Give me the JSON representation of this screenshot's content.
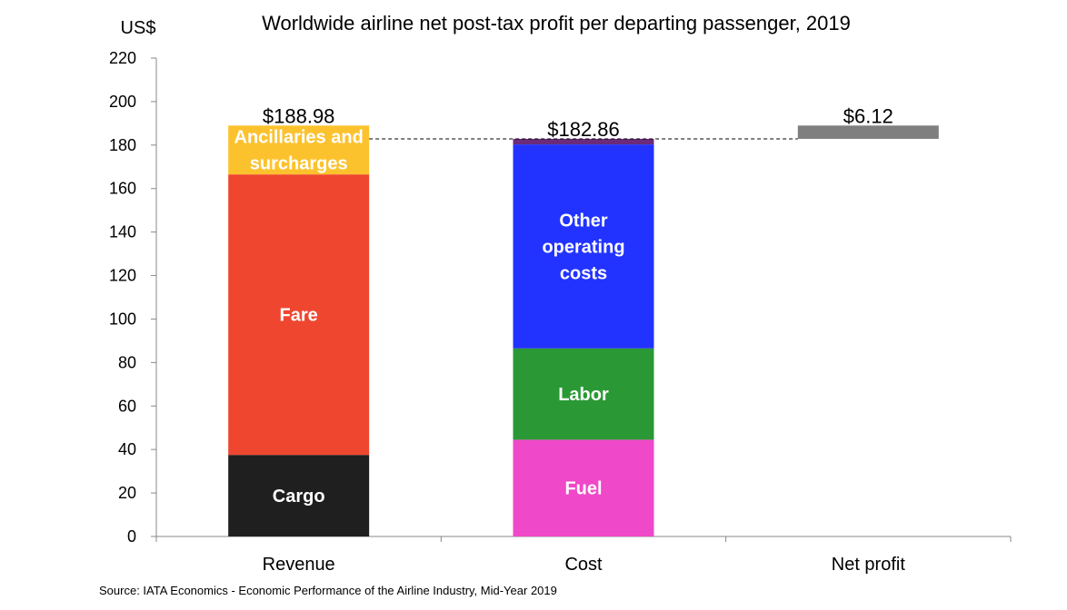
{
  "chart_data": {
    "type": "bar",
    "subtype": "stacked waterfall",
    "title": "Worldwide airline net post-tax profit per departing passenger, 2019",
    "y_unit_label": "US$",
    "ylim": [
      0,
      220
    ],
    "y_ticks": [
      0,
      20,
      40,
      60,
      80,
      100,
      120,
      140,
      160,
      180,
      200,
      220
    ],
    "categories": [
      "Revenue",
      "Cost",
      "Net profit"
    ],
    "bars": [
      {
        "category": "Revenue",
        "total_label": "$188.98",
        "segments": [
          {
            "name": "Cargo",
            "value": 37.5,
            "color": "#1f1f1f",
            "label_lines": [
              "Cargo"
            ]
          },
          {
            "name": "Fare",
            "value": 129.0,
            "color": "#ef4630",
            "label_lines": [
              "Fare"
            ]
          },
          {
            "name": "Ancillaries and surcharges",
            "value": 22.48,
            "color": "#fcc22e",
            "label_lines": [
              "Ancillaries and",
              "surcharges"
            ]
          }
        ]
      },
      {
        "category": "Cost",
        "total_label": "$182.86",
        "segments": [
          {
            "name": "Fuel",
            "value": 44.5,
            "color": "#ef48c8",
            "label_lines": [
              "Fuel"
            ]
          },
          {
            "name": "Labor",
            "value": 42.0,
            "color": "#2a9935",
            "label_lines": [
              "Labor"
            ]
          },
          {
            "name": "Other operating costs",
            "value": 93.8,
            "color": "#2233ff",
            "label_lines": [
              "Other",
              "operating",
              "costs"
            ]
          },
          {
            "name": "",
            "value": 2.56,
            "color": "#6b2b7a",
            "label_lines": []
          }
        ]
      },
      {
        "category": "Net profit",
        "total_label": "$6.12",
        "floating": true,
        "base": 182.86,
        "segments": [
          {
            "name": "Net profit",
            "value": 6.12,
            "color": "#7f7f7f",
            "label_lines": []
          }
        ]
      }
    ],
    "reference_line": {
      "value": 182.86,
      "style": "dashed"
    },
    "grid": false
  },
  "source": "Source: IATA Economics - Economic Performance of the Airline Industry, Mid-Year 2019"
}
